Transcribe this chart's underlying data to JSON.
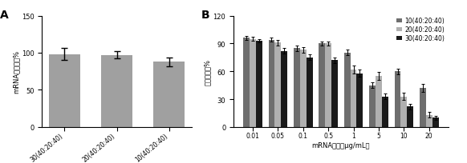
{
  "panel_A": {
    "title": "A",
    "categories": [
      "30(40:20:40)",
      "20(40:20:40)",
      "10(40:20:40)"
    ],
    "values": [
      98,
      97,
      88
    ],
    "errors": [
      8,
      5,
      6
    ],
    "bar_color": "#a0a0a0",
    "ylabel": "mRNA包裹效率%",
    "ylim": [
      0,
      150
    ],
    "yticks": [
      0,
      50,
      100,
      150
    ]
  },
  "panel_B": {
    "title": "B",
    "xlabel": "mRNA浓度（μg/mL）",
    "ylabel": "细胞存活率%",
    "ylim": [
      0,
      120
    ],
    "yticks": [
      0,
      30,
      60,
      90,
      120
    ],
    "xticklabels": [
      "0.01",
      "0.05",
      "0.1",
      "0.5",
      "1",
      "5",
      "10",
      "20"
    ],
    "legend_labels": [
      "10(40:20:40)",
      "20(40:20:40)",
      "30(40:20:40)"
    ],
    "bar_colors": [
      "#6e6e6e",
      "#b0b0b0",
      "#1a1a1a"
    ],
    "values": {
      "10(40:20:40)": [
        96,
        94,
        85,
        90,
        80,
        45,
        60,
        42
      ],
      "20(40:20:40)": [
        95,
        91,
        83,
        90,
        62,
        55,
        33,
        13
      ],
      "30(40:20:40)": [
        93,
        82,
        75,
        72,
        58,
        33,
        22,
        10
      ]
    },
    "errors": {
      "10(40:20:40)": [
        2,
        2,
        3,
        2,
        3,
        3,
        3,
        4
      ],
      "20(40:20:40)": [
        2,
        3,
        3,
        2,
        4,
        4,
        4,
        3
      ],
      "30(40:20:40)": [
        2,
        3,
        3,
        3,
        4,
        3,
        3,
        2
      ]
    }
  }
}
